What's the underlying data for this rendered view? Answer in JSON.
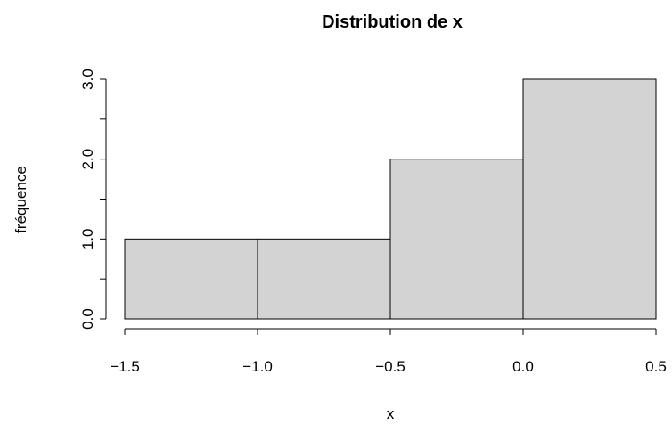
{
  "chart_data": {
    "type": "bar",
    "title": "Distribution de x",
    "xlabel": "x",
    "ylabel": "fréquence",
    "bins": [
      {
        "start": -1.5,
        "end": -1.0,
        "value": 1
      },
      {
        "start": -1.0,
        "end": -0.5,
        "value": 1
      },
      {
        "start": -0.5,
        "end": 0.0,
        "value": 2
      },
      {
        "start": 0.0,
        "end": 0.5,
        "value": 3
      }
    ],
    "xlim": [
      -1.5,
      0.5
    ],
    "ylim": [
      0,
      3
    ],
    "x_ticks": [
      -1.5,
      -1.0,
      -0.5,
      0.0,
      0.5
    ],
    "x_tick_labels": [
      "−1.5",
      "−1.0",
      "−0.5",
      "0.0",
      "0.5"
    ],
    "y_ticks": [
      0,
      0.5,
      1,
      1.5,
      2,
      2.5,
      3
    ],
    "y_tick_labels": [
      "0.0",
      "",
      "1.0",
      "",
      "2.0",
      "",
      "3.0"
    ],
    "bar_color": "#d3d3d3",
    "edge_color": "#000000",
    "grid": false,
    "legend": "none"
  }
}
